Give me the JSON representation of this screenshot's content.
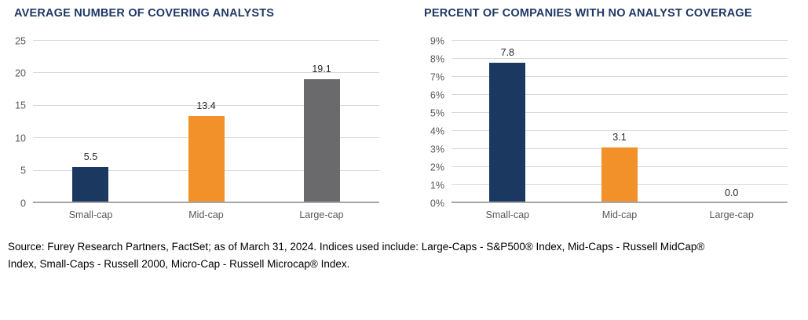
{
  "page": {
    "background": "#ffffff"
  },
  "chart_data": [
    {
      "type": "bar",
      "title": "AVERAGE NUMBER OF COVERING ANALYSTS",
      "categories": [
        "Small-cap",
        "Mid-cap",
        "Large-cap"
      ],
      "values": [
        5.5,
        13.4,
        19.1
      ],
      "value_labels": [
        "5.5",
        "13.4",
        "19.1"
      ],
      "bar_colors": [
        "#1B3861",
        "#F2912A",
        "#6A6A6D"
      ],
      "xlabel": "",
      "ylabel": "",
      "ylim": [
        0,
        25
      ],
      "ytick_step": 5,
      "ytick_labels": [
        "0",
        "5",
        "10",
        "15",
        "20",
        "25"
      ],
      "grid": true,
      "legend": "none"
    },
    {
      "type": "bar",
      "title": "PERCENT OF COMPANIES WITH NO ANALYST COVERAGE",
      "categories": [
        "Small-cap",
        "Mid-cap",
        "Large-cap"
      ],
      "values": [
        7.8,
        3.1,
        0.0
      ],
      "value_labels": [
        "7.8",
        "3.1",
        "0.0"
      ],
      "bar_colors": [
        "#1B3861",
        "#F2912A",
        "#6A6A6D"
      ],
      "xlabel": "",
      "ylabel": "",
      "ylim": [
        0,
        9
      ],
      "ytick_step": 1,
      "ytick_labels": [
        "0%",
        "1%",
        "2%",
        "3%",
        "4%",
        "5%",
        "6%",
        "7%",
        "8%",
        "9%"
      ],
      "grid": true,
      "legend": "none"
    }
  ],
  "styles": {
    "title_color": "#1F3864",
    "grid_color": "#D9D9D9",
    "baseline_color": "#A6A6A6",
    "tick_color": "#595959",
    "value_label_color": "#262626"
  },
  "source": {
    "line1": "Source: Furey Research Partners, FactSet; as of March 31, 2024. Indices used include: Large-Caps - S&P500® Index, Mid-Caps - Russell MidCap®",
    "line2": "Index, Small-Caps - Russell 2000, Micro-Cap - Russell Microcap® Index."
  }
}
